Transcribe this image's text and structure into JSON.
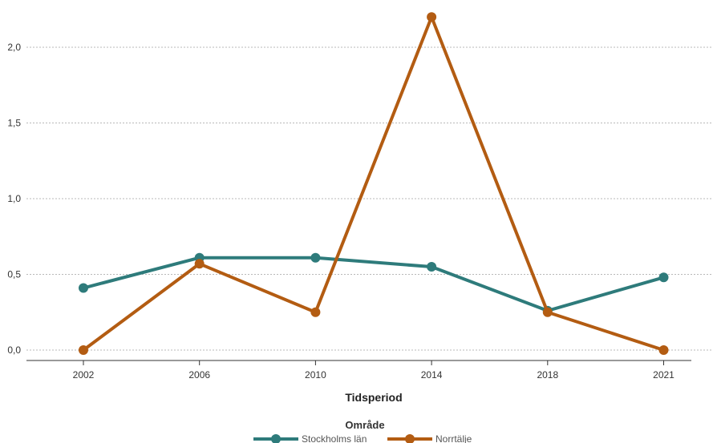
{
  "chart_data": {
    "type": "line",
    "categories": [
      "2002",
      "2006",
      "2010",
      "2014",
      "2018",
      "2021"
    ],
    "series": [
      {
        "name": "Stockholms län",
        "color": "#2e7b7b",
        "values": [
          0.41,
          0.61,
          0.61,
          0.55,
          0.26,
          0.48
        ]
      },
      {
        "name": "Norrtälje",
        "color": "#b35c12",
        "values": [
          0.0,
          0.57,
          0.25,
          2.2,
          0.25,
          0.0
        ]
      }
    ],
    "xlabel": "Tidsperiod",
    "ylabel": "",
    "ylim": [
      0,
      2.25
    ],
    "yticks": [
      0.0,
      0.5,
      1.0,
      1.5,
      2.0
    ],
    "ytick_labels": [
      "0,0",
      "0,5",
      "1,0",
      "1,5",
      "2,0"
    ],
    "grid": "horizontal-dotted",
    "legend": {
      "title": "Område",
      "placement": "bottom-center"
    }
  }
}
